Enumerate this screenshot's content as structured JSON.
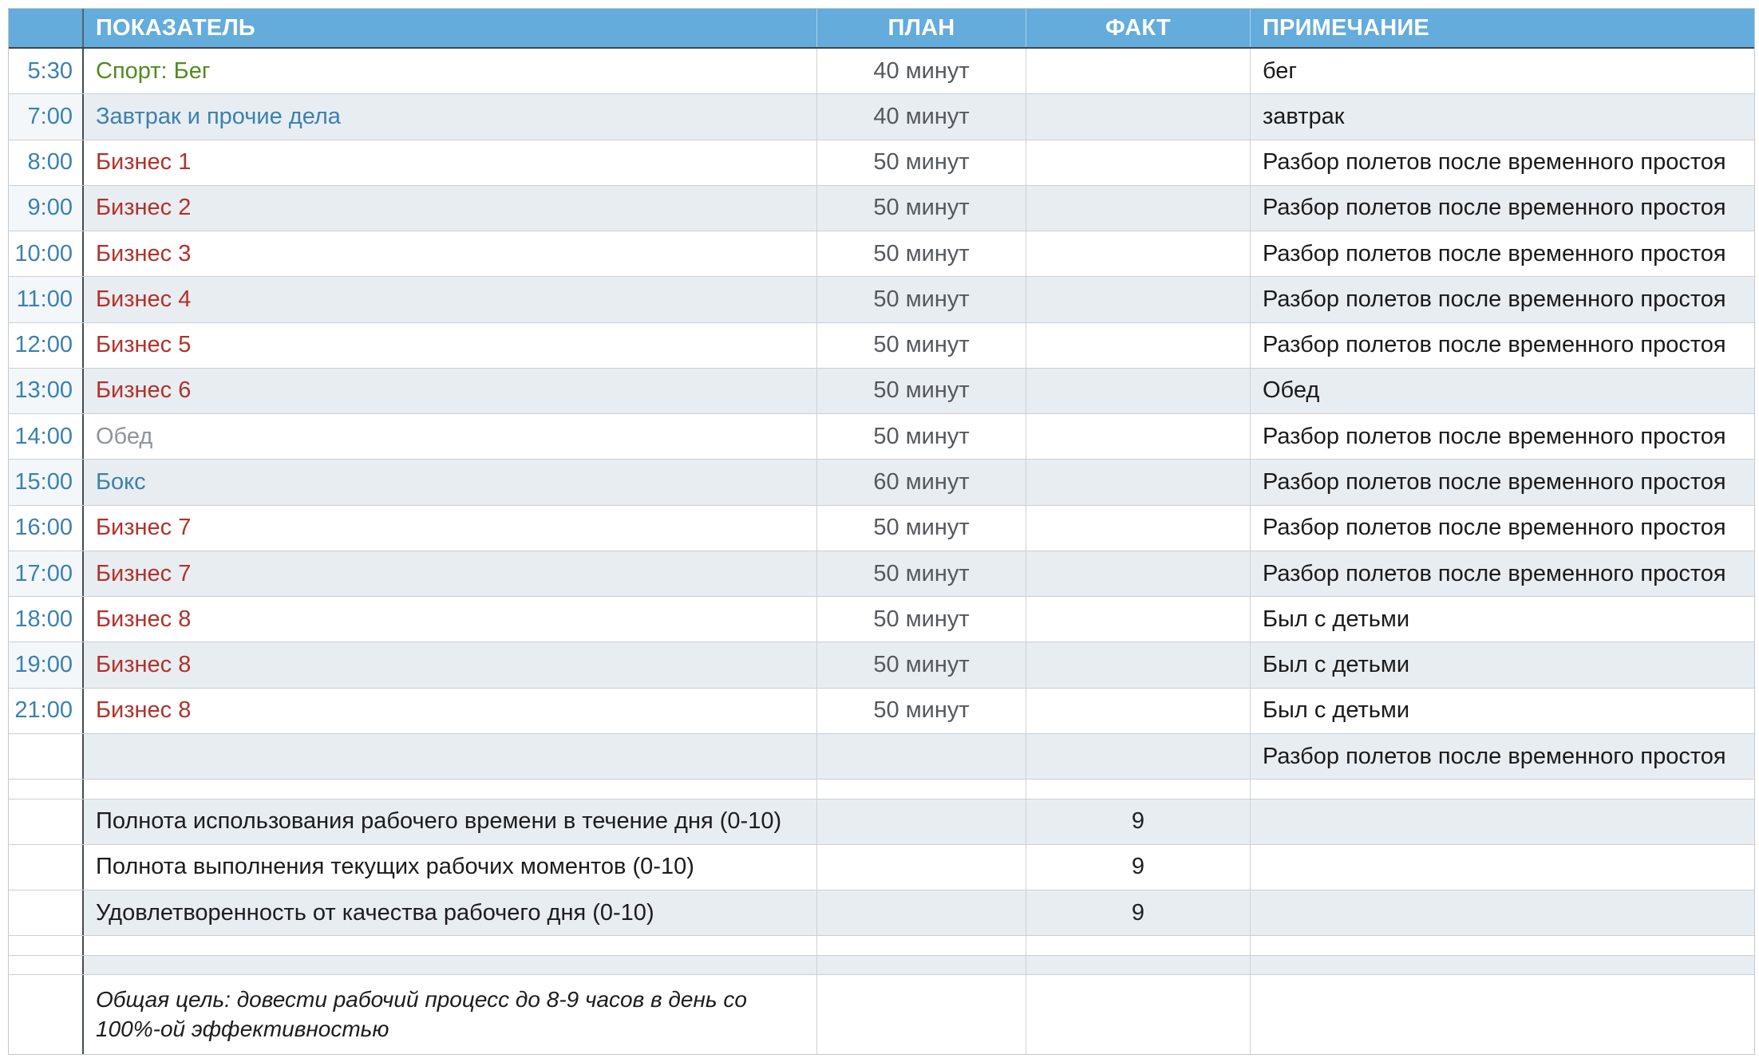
{
  "table": {
    "headers": {
      "time": "",
      "indicator": "ПОКАЗАТЕЛЬ",
      "plan": "ПЛАН",
      "fact": "ФАКТ",
      "note": "ПРИМЕЧАНИЕ"
    },
    "rows": [
      {
        "time": "5:30",
        "indicator": "Спорт: Бег",
        "indicator_color": "green",
        "plan": "40 минут",
        "fact": "",
        "note": "бег"
      },
      {
        "time": "7:00",
        "indicator": "Завтрак и прочие дела",
        "indicator_color": "blue",
        "plan": "40 минут",
        "fact": "",
        "note": "завтрак"
      },
      {
        "time": "8:00",
        "indicator": "Бизнес 1",
        "indicator_color": "red",
        "plan": "50 минут",
        "fact": "",
        "note": "Разбор полетов после временного простоя"
      },
      {
        "time": "9:00",
        "indicator": "Бизнес 2",
        "indicator_color": "red",
        "plan": "50 минут",
        "fact": "",
        "note": "Разбор полетов после временного простоя"
      },
      {
        "time": "10:00",
        "indicator": "Бизнес 3",
        "indicator_color": "red",
        "plan": "50 минут",
        "fact": "",
        "note": "Разбор полетов после временного простоя"
      },
      {
        "time": "11:00",
        "indicator": "Бизнес 4",
        "indicator_color": "red",
        "plan": "50 минут",
        "fact": "",
        "note": "Разбор полетов после временного простоя"
      },
      {
        "time": "12:00",
        "indicator": "Бизнес 5",
        "indicator_color": "red",
        "plan": "50 минут",
        "fact": "",
        "note": "Разбор полетов после временного простоя"
      },
      {
        "time": "13:00",
        "indicator": "Бизнес 6",
        "indicator_color": "red",
        "plan": "50 минут",
        "fact": "",
        "note": "Обед"
      },
      {
        "time": "14:00",
        "indicator": "Обед",
        "indicator_color": "gray",
        "plan": "50 минут",
        "fact": "",
        "note": "Разбор полетов после временного простоя"
      },
      {
        "time": "15:00",
        "indicator": "Бокс",
        "indicator_color": "blue",
        "plan": "60 минут",
        "fact": "",
        "note": "Разбор полетов после временного простоя"
      },
      {
        "time": "16:00",
        "indicator": "Бизнес 7",
        "indicator_color": "red",
        "plan": "50 минут",
        "fact": "",
        "note": "Разбор полетов после временного простоя"
      },
      {
        "time": "17:00",
        "indicator": "Бизнес 7",
        "indicator_color": "red",
        "plan": "50 минут",
        "fact": "",
        "note": "Разбор полетов после временного простоя"
      },
      {
        "time": "18:00",
        "indicator": "Бизнес 8",
        "indicator_color": "red",
        "plan": "50 минут",
        "fact": "",
        "note": "Был с детьми"
      },
      {
        "time": "19:00",
        "indicator": "Бизнес 8",
        "indicator_color": "red",
        "plan": "50 минут",
        "fact": "",
        "note": "Был с детьми"
      },
      {
        "time": "21:00",
        "indicator": "Бизнес 8",
        "indicator_color": "red",
        "plan": "50 минут",
        "fact": "",
        "note": "Был с детьми"
      },
      {
        "time": "",
        "indicator": "",
        "indicator_color": "black",
        "plan": "",
        "fact": "",
        "note": "Разбор полетов после временного простоя"
      },
      {
        "time": "",
        "indicator": "",
        "indicator_color": "black",
        "plan": "",
        "fact": "",
        "note": ""
      },
      {
        "time": "",
        "indicator": "Полнота использования рабочего времени в течение дня (0-10)",
        "indicator_color": "black",
        "plan": "",
        "fact": "9",
        "note": ""
      },
      {
        "time": "",
        "indicator": "Полнота выполнения текущих рабочих моментов (0-10)",
        "indicator_color": "black",
        "plan": "",
        "fact": "9",
        "note": ""
      },
      {
        "time": "",
        "indicator": "Удовлетворенность от качества рабочего дня (0-10)",
        "indicator_color": "black",
        "plan": "",
        "fact": "9",
        "note": ""
      },
      {
        "time": "",
        "indicator": "",
        "indicator_color": "black",
        "plan": "",
        "fact": "",
        "note": ""
      },
      {
        "time": "",
        "indicator": "",
        "indicator_color": "black",
        "plan": "",
        "fact": "",
        "note": ""
      },
      {
        "time": "",
        "indicator": "Общая цель: довести рабочий процесс до 8-9 часов в день со 100%-ой эффективностью",
        "indicator_color": "black",
        "indicator_style": "italic",
        "plan": "",
        "fact": "",
        "note": ""
      }
    ]
  },
  "colors": {
    "header_bg": "#63ACDB",
    "header_text": "#FFFFFF",
    "row_shaded_bg": "#E8EDF2",
    "time_text": "#3B81AF",
    "green": "#538A1F",
    "blue": "#3B81AF",
    "red": "#B3312A",
    "gray": "#8F9499",
    "black": "#1C1C1E",
    "plan_text": "#55585C",
    "border_light": "#CBD0D5",
    "border_dark": "#454D52"
  }
}
